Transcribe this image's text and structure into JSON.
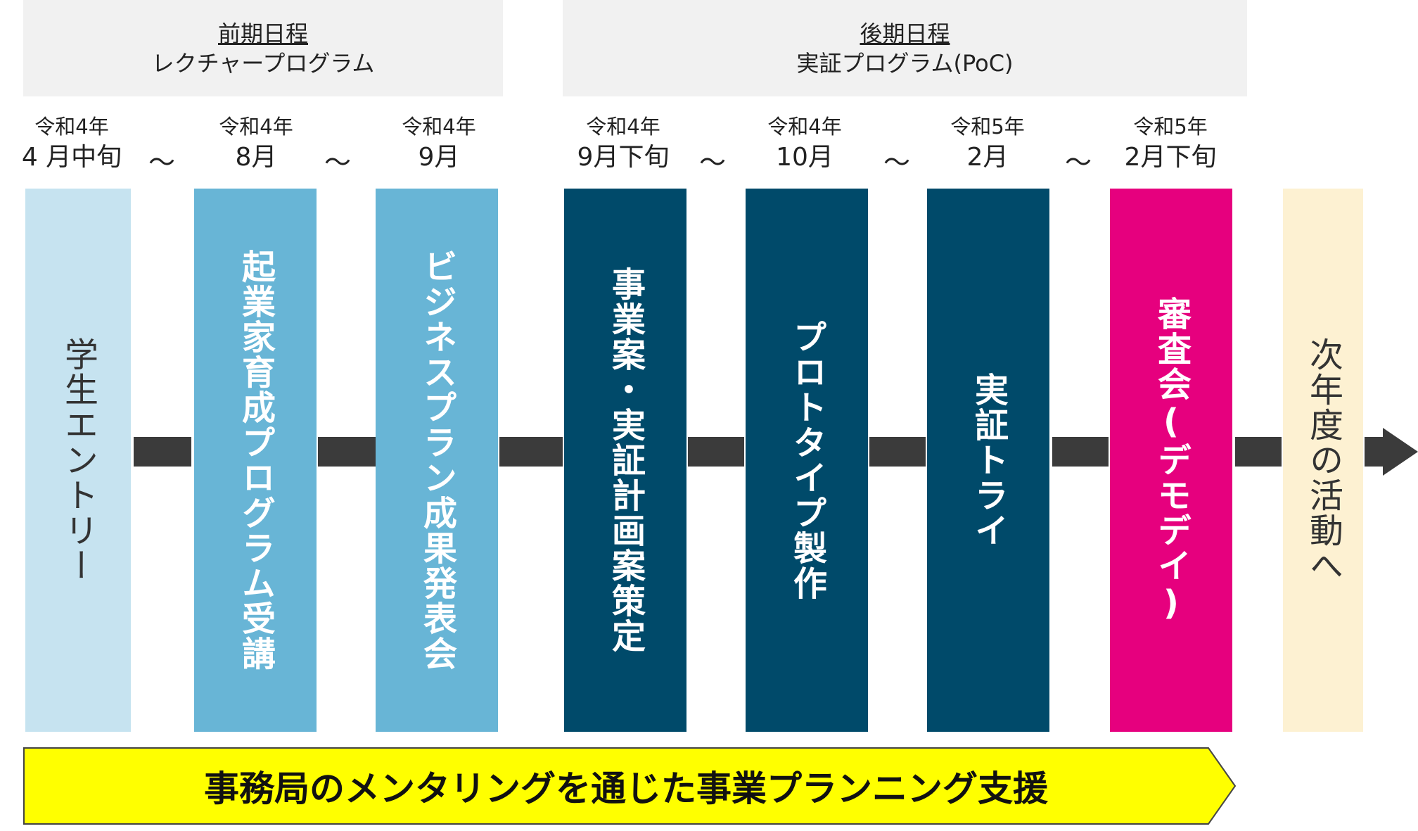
{
  "phases": [
    {
      "title": "前期日程",
      "subtitle": "レクチャープログラム"
    },
    {
      "title": "後期日程",
      "subtitle": "実証プログラム(PoC)"
    }
  ],
  "dates": [
    {
      "year": "令和4年",
      "month": "4 月中旬"
    },
    {
      "year": "令和4年",
      "month": "8月"
    },
    {
      "year": "令和4年",
      "month": "9月"
    },
    {
      "year": "令和4年",
      "month": "9月下旬"
    },
    {
      "year": "令和4年",
      "month": "10月"
    },
    {
      "year": "令和5年",
      "month": "2月"
    },
    {
      "year": "令和5年",
      "month": "2月下旬"
    }
  ],
  "tilde": "～",
  "steps": [
    {
      "label": "学生エントリー",
      "color": "#c6e3f0"
    },
    {
      "label": "起業家育成プログラム受講",
      "color": "#68b5d6"
    },
    {
      "label": "ビジネスプラン成果発表会",
      "color": "#68b5d6"
    },
    {
      "label": "事業案・実証計画案策定",
      "color": "#004a6a"
    },
    {
      "label": "プロトタイプ製作",
      "color": "#004a6a"
    },
    {
      "label": "実証トライ",
      "color": "#004a6a"
    },
    {
      "label": "審査会(デモデイ)",
      "color": "#e6007e"
    },
    {
      "label": "次年度の活動へ",
      "color": "#fdf1d2"
    }
  ],
  "banner": {
    "text": "事務局のメンタリングを通じた事業プランニング支援",
    "color": "#ffff00"
  },
  "connector_color": "#3b3b3b"
}
